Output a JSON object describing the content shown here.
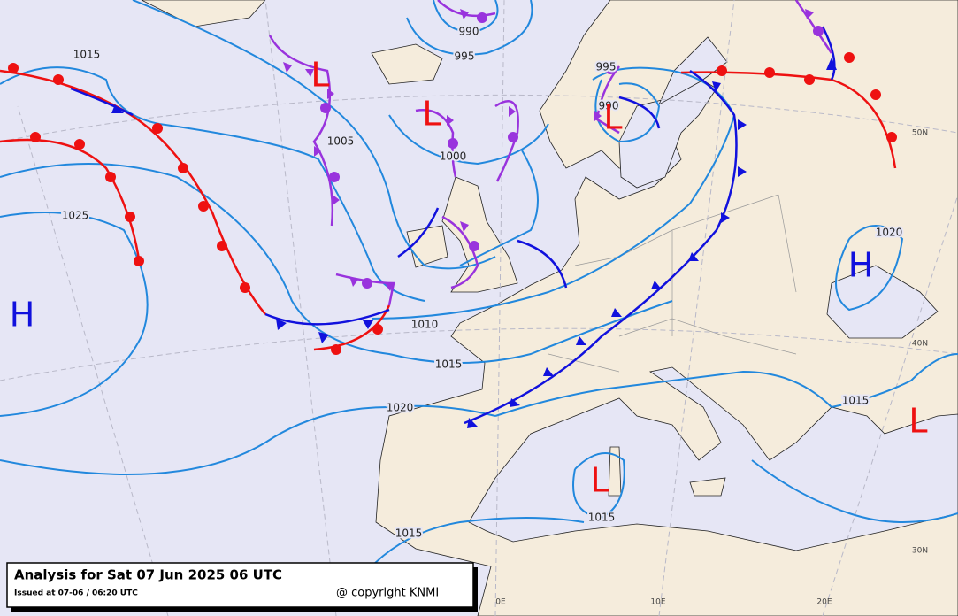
{
  "header": {
    "title": "Analysis for Sat 07 Jun 2025 06 UTC",
    "issued": "Issued at 07-06 / 06:20 UTC",
    "copyright": "@ copyright KNMI"
  },
  "isobar_labels": [
    1015,
    1005,
    1025,
    990,
    995,
    1000,
    995,
    990,
    1010,
    1015,
    1020,
    1020,
    1015,
    1015,
    1015
  ],
  "pressure_centers": [
    "H",
    "L",
    "L",
    "L",
    "H",
    "L",
    "L"
  ],
  "latitude_labels": [
    "50N",
    "40N",
    "30N"
  ],
  "longitude_labels": [
    "0E",
    "10E",
    "20E"
  ]
}
